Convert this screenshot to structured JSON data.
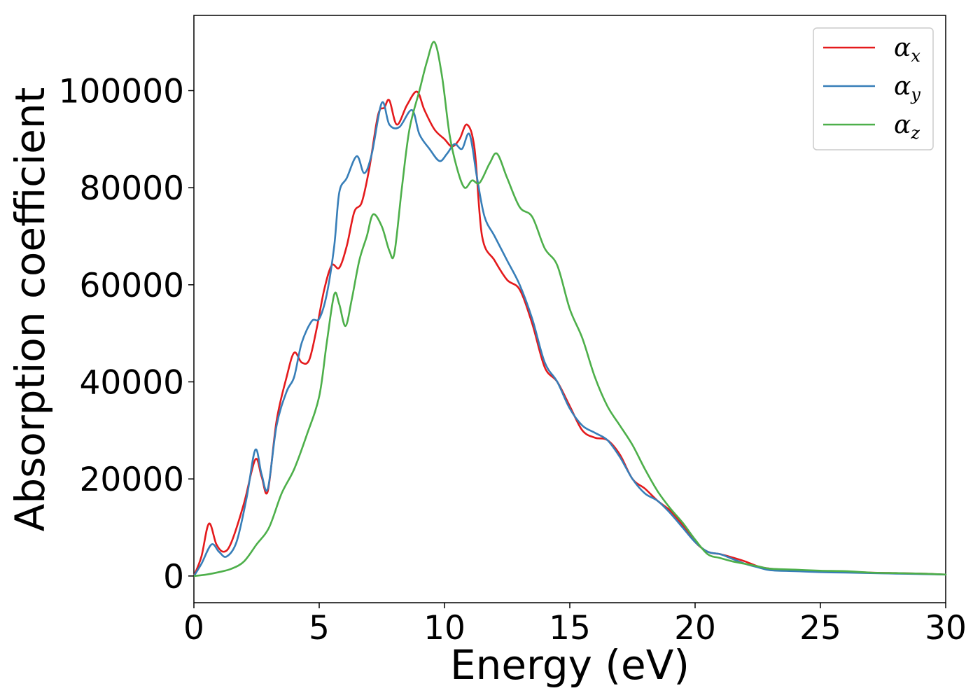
{
  "chart_data": {
    "type": "line",
    "title": "",
    "xlabel": "Energy (eV)",
    "ylabel": "Absorption coefficient",
    "xlim": [
      0,
      30
    ],
    "ylim": [
      -5500,
      115500
    ],
    "xticks": [
      0,
      5,
      10,
      15,
      20,
      25,
      30
    ],
    "yticks": [
      0,
      20000,
      40000,
      60000,
      80000,
      100000
    ],
    "grid": false,
    "legend_position": "top-right",
    "series": [
      {
        "name": "α_x",
        "symbol": "α",
        "subscript": "x",
        "color": "#e41a1c",
        "x": [
          0,
          0.3,
          0.6,
          0.9,
          1.2,
          1.5,
          2.0,
          2.45,
          2.7,
          2.95,
          3.3,
          3.7,
          4.0,
          4.3,
          4.6,
          4.9,
          5.2,
          5.5,
          5.8,
          6.1,
          6.4,
          6.7,
          7.0,
          7.35,
          7.6,
          7.8,
          8.1,
          8.5,
          8.9,
          9.2,
          9.6,
          10.0,
          10.3,
          10.6,
          10.9,
          11.2,
          11.5,
          12.0,
          12.5,
          13.0,
          13.5,
          14.0,
          14.5,
          15.0,
          15.5,
          16.0,
          16.5,
          17.0,
          17.5,
          18.0,
          18.5,
          19.0,
          19.5,
          20.0,
          20.5,
          21.0,
          21.5,
          22.0,
          22.5,
          23.0,
          24.0,
          25.0,
          26.0,
          27.0,
          28.0,
          29.0,
          30.0
        ],
        "values": [
          0,
          4000,
          10800,
          6500,
          5000,
          7000,
          15000,
          24000,
          20500,
          17500,
          32000,
          41000,
          46000,
          44000,
          44500,
          51000,
          59000,
          64000,
          63500,
          68000,
          75000,
          77000,
          84000,
          95000,
          96500,
          98000,
          93000,
          97000,
          99800,
          96000,
          92000,
          90000,
          88500,
          90000,
          93000,
          88000,
          70000,
          65000,
          61000,
          59000,
          52000,
          43000,
          40000,
          35000,
          30000,
          28500,
          28000,
          25000,
          20000,
          18000,
          15500,
          13500,
          10500,
          7000,
          5000,
          4500,
          3800,
          3000,
          2000,
          1500,
          1200,
          1000,
          900,
          700,
          600,
          500,
          300
        ]
      },
      {
        "name": "α_y",
        "symbol": "α",
        "subscript": "y",
        "color": "#377eb8",
        "x": [
          0,
          0.3,
          0.7,
          1.0,
          1.3,
          1.7,
          2.1,
          2.45,
          2.7,
          2.95,
          3.3,
          3.7,
          4.0,
          4.3,
          4.7,
          5.0,
          5.3,
          5.6,
          5.8,
          6.1,
          6.5,
          6.8,
          7.1,
          7.5,
          7.8,
          8.2,
          8.7,
          9.0,
          9.4,
          9.8,
          10.1,
          10.4,
          10.7,
          11.0,
          11.3,
          11.6,
          12.0,
          12.5,
          13.0,
          13.5,
          14.0,
          14.5,
          15.0,
          15.5,
          16.0,
          16.5,
          17.0,
          17.5,
          18.0,
          18.5,
          19.0,
          19.5,
          20.0,
          20.5,
          21.0,
          21.5,
          22.0,
          22.5,
          23.0,
          24.0,
          25.0,
          26.0,
          27.0,
          28.0,
          29.0,
          30.0
        ],
        "values": [
          0,
          2500,
          6500,
          5000,
          4000,
          7000,
          16000,
          26000,
          21000,
          18000,
          31000,
          38000,
          41000,
          48000,
          52500,
          53000,
          58000,
          68000,
          79000,
          82000,
          86500,
          83000,
          87000,
          97500,
          93000,
          92500,
          96000,
          91000,
          88000,
          85500,
          87000,
          89000,
          88000,
          91000,
          82000,
          74000,
          70000,
          65000,
          60000,
          53000,
          44000,
          40000,
          34500,
          31000,
          29500,
          28000,
          24500,
          20000,
          17000,
          15500,
          13000,
          10000,
          7000,
          5000,
          4500,
          3500,
          2500,
          1800,
          1200,
          1000,
          800,
          700,
          600,
          500,
          400,
          300
        ]
      },
      {
        "name": "α_z",
        "symbol": "α",
        "subscript": "z",
        "color": "#4daf4a",
        "x": [
          0,
          0.5,
          1.0,
          1.5,
          2.0,
          2.5,
          3.0,
          3.5,
          4.0,
          4.5,
          5.0,
          5.3,
          5.6,
          5.8,
          6.05,
          6.3,
          6.6,
          6.9,
          7.15,
          7.5,
          7.8,
          8.0,
          8.3,
          8.6,
          9.0,
          9.3,
          9.6,
          9.9,
          10.2,
          10.5,
          10.8,
          11.1,
          11.4,
          11.8,
          12.1,
          12.5,
          13.0,
          13.5,
          14.0,
          14.5,
          15.0,
          15.5,
          16.0,
          16.5,
          17.0,
          17.5,
          18.0,
          18.5,
          19.0,
          19.5,
          20.0,
          20.5,
          21.0,
          21.5,
          22.0,
          22.5,
          23.0,
          24.0,
          25.0,
          26.0,
          27.0,
          28.0,
          29.0,
          30.0
        ],
        "values": [
          0,
          300,
          800,
          1500,
          3000,
          6500,
          10000,
          17000,
          22000,
          29000,
          37000,
          48000,
          58000,
          56000,
          51500,
          57000,
          65000,
          70000,
          74500,
          72000,
          67000,
          66500,
          80000,
          92000,
          100000,
          106000,
          110000,
          103000,
          91000,
          84000,
          80000,
          81500,
          81000,
          85000,
          87000,
          82000,
          76000,
          74000,
          67500,
          64000,
          55000,
          49000,
          41000,
          35000,
          31000,
          27000,
          22000,
          17500,
          14000,
          11000,
          7500,
          4500,
          3700,
          3000,
          2500,
          2000,
          1500,
          1300,
          1100,
          1000,
          700,
          600,
          500,
          300
        ]
      }
    ]
  }
}
